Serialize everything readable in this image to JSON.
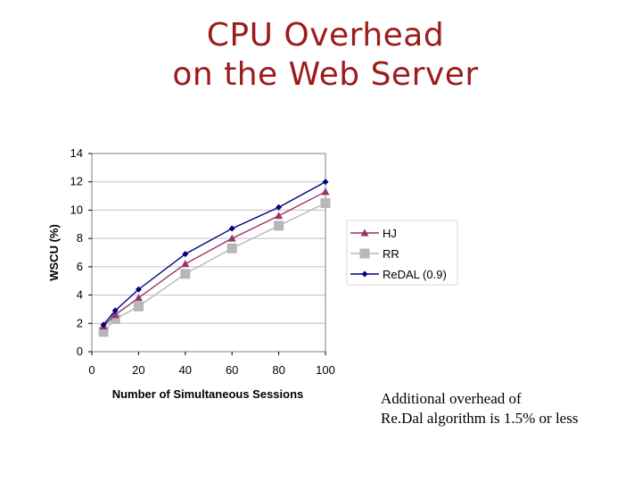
{
  "slide": {
    "title_line1": "CPU Overhead",
    "title_line2": "on the Web Server",
    "note_line1": "Additional overhead of",
    "note_line2": "Re.Dal algorithm is 1.5% or less"
  },
  "colors": {
    "title": "#9c1c1c",
    "hj": "#993366",
    "rr": "#b7b7b7",
    "redal": "#000080",
    "grid": "#c0c0c0",
    "plot_border": "#808080"
  },
  "chart_data": {
    "type": "line",
    "title": "",
    "xlabel": "Number of Simultaneous Sessions",
    "ylabel": "WSCU (%)",
    "xlim": [
      0,
      100
    ],
    "ylim": [
      0,
      14
    ],
    "xticks": [
      0,
      20,
      40,
      60,
      80,
      100
    ],
    "yticks": [
      0,
      2,
      4,
      6,
      8,
      10,
      12,
      14
    ],
    "grid": "horizontal",
    "legend_position": "right",
    "series": [
      {
        "name": "HJ",
        "marker": "triangle",
        "x": [
          5,
          10,
          20,
          40,
          60,
          80,
          100
        ],
        "y": [
          1.8,
          2.6,
          3.8,
          6.2,
          8.0,
          9.6,
          11.3
        ]
      },
      {
        "name": "RR",
        "marker": "square",
        "x": [
          5,
          10,
          20,
          40,
          60,
          80,
          100
        ],
        "y": [
          1.4,
          2.3,
          3.2,
          5.5,
          7.3,
          8.9,
          10.5
        ]
      },
      {
        "name": "ReDAL (0.9)",
        "marker": "diamond",
        "x": [
          5,
          10,
          20,
          40,
          60,
          80,
          100
        ],
        "y": [
          1.9,
          2.9,
          4.4,
          6.9,
          8.7,
          10.2,
          12.0
        ]
      }
    ]
  }
}
